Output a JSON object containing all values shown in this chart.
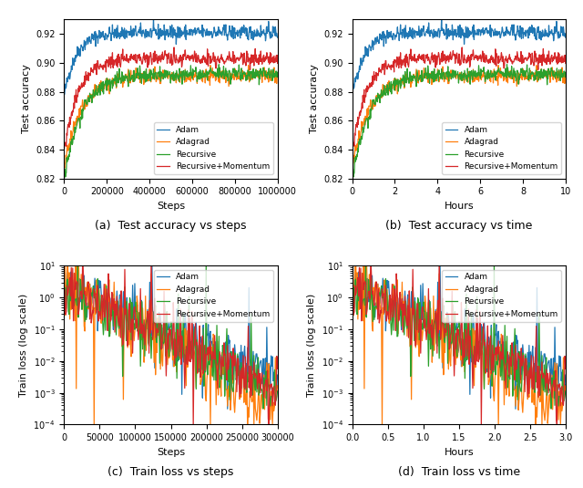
{
  "colors": {
    "Adam": "#1f77b4",
    "Adagrad": "#ff7f0e",
    "Recursive": "#2ca02c",
    "RecursiveMomentum": "#d62728"
  },
  "legend_labels": [
    "Adam",
    "Adagrad",
    "Recursive",
    "Recursive+Momentum"
  ],
  "subplot_captions": [
    "(a)  Test accuracy vs steps",
    "(b)  Test accuracy vs time",
    "(c)  Train loss vs steps",
    "(d)  Train loss vs time"
  ],
  "acc_ylim": [
    0.82,
    0.93
  ],
  "acc_yticks": [
    0.82,
    0.84,
    0.86,
    0.88,
    0.9,
    0.92
  ],
  "steps_xlim": [
    0,
    1000000
  ],
  "steps_xticks": [
    0,
    200000,
    400000,
    600000,
    800000,
    1000000
  ],
  "hours_xlim": [
    0,
    10
  ],
  "hours_xticks": [
    0,
    2,
    4,
    6,
    8,
    10
  ],
  "loss_steps_xlim": [
    0,
    300000
  ],
  "loss_steps_xticks": [
    0,
    50000,
    100000,
    150000,
    200000,
    250000,
    300000
  ],
  "loss_hours_xlim": [
    0,
    3.0
  ],
  "loss_hours_xticks": [
    0.0,
    0.5,
    1.0,
    1.5,
    2.0,
    2.5,
    3.0
  ],
  "xlabel_steps": "Steps",
  "xlabel_hours": "Hours",
  "ylabel_acc": "Test accuracy",
  "ylabel_loss": "Train loss (log scale)",
  "seed": 42,
  "figsize": [
    6.4,
    5.35
  ],
  "dpi": 100
}
